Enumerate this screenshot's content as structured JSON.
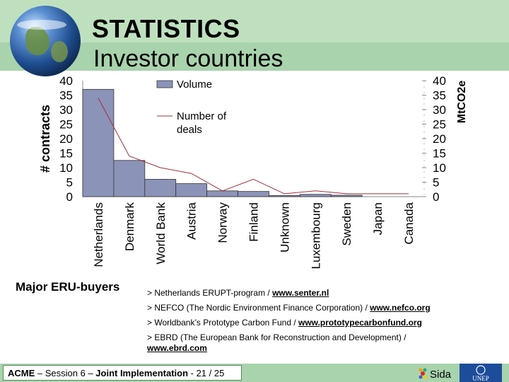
{
  "slide": {
    "title": "STATISTICS",
    "subtitle": "Investor countries"
  },
  "chart_data": {
    "type": "bar",
    "categories": [
      "Netherlands",
      "Denmark",
      "World Bank",
      "Austria",
      "Norway",
      "Finland",
      "Unknown",
      "Luxembourg",
      "Sweden",
      "Japan",
      "Canada"
    ],
    "series": [
      {
        "name": "Volume",
        "type": "bar",
        "values": [
          37,
          12.5,
          6,
          4.5,
          2,
          1.8,
          0.4,
          0.8,
          0.5,
          0,
          0
        ],
        "color": "#8c93b8"
      },
      {
        "name": "Number of deals",
        "type": "line",
        "values": [
          34,
          14,
          10,
          8,
          2,
          6,
          1,
          2,
          1,
          1,
          1
        ],
        "color": "#a0303a"
      }
    ],
    "ylabel": "# contracts",
    "y2label": "MtCO2e",
    "ylim": [
      0,
      40
    ],
    "y2lim": [
      0,
      40
    ],
    "yticks": [
      "0",
      "5",
      "10",
      "15",
      "20",
      "25",
      "30",
      "35",
      "40"
    ],
    "legend": {
      "volume": "Volume",
      "deals_line1": "Number of",
      "deals_line2": "deals"
    },
    "legend_position": "top-center"
  },
  "buyers": {
    "label": "Major ERU-buyers",
    "items": [
      {
        "text": "> Netherlands ERUPT-program / ",
        "link": "www.senter.nl"
      },
      {
        "text": "> NEFCO (The Nordic Environment Finance Corporation) / ",
        "link": "www.nefco.org"
      },
      {
        "text": "> Worldbank’s Prototype Carbon Fund / ",
        "link": "www.prototypecarbonfund.org"
      },
      {
        "text": "> EBRD (The European Bank for Reconstruction and Development) / ",
        "link": "www.ebrd.com"
      }
    ]
  },
  "footer": {
    "course": "ACME",
    "rest": " – Session 6 – ",
    "topic": "Joint Implementation",
    "page": " - 21 / 25",
    "logo1": "Sida",
    "logo2": "UNEP"
  }
}
